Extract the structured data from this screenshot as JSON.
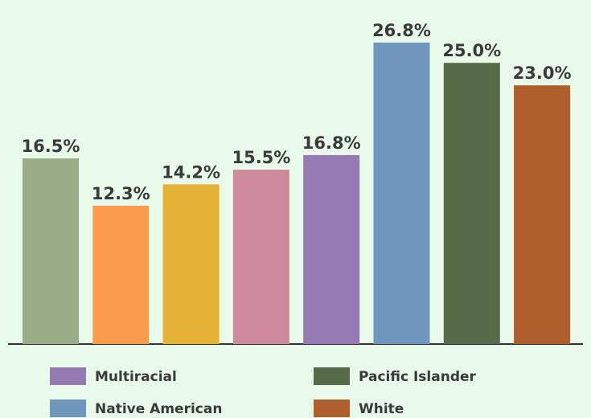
{
  "chart_data": {
    "type": "bar",
    "categories": [
      null,
      null,
      null,
      null,
      "Multiracial",
      "Native American",
      "Pacific Islander",
      "White"
    ],
    "values": [
      16.5,
      12.3,
      14.2,
      15.5,
      16.8,
      26.8,
      25.0,
      23.0
    ],
    "value_labels": [
      "16.5%",
      "12.3%",
      "14.2%",
      "15.5%",
      "16.8%",
      "26.8%",
      "25.0%",
      "23.0%"
    ],
    "colors": [
      "#9aab87",
      "#f99b4a",
      "#e5b236",
      "#d08a9d",
      "#957ab4",
      "#6f97bb",
      "#586b48",
      "#ae5f2c"
    ]
  }
}
